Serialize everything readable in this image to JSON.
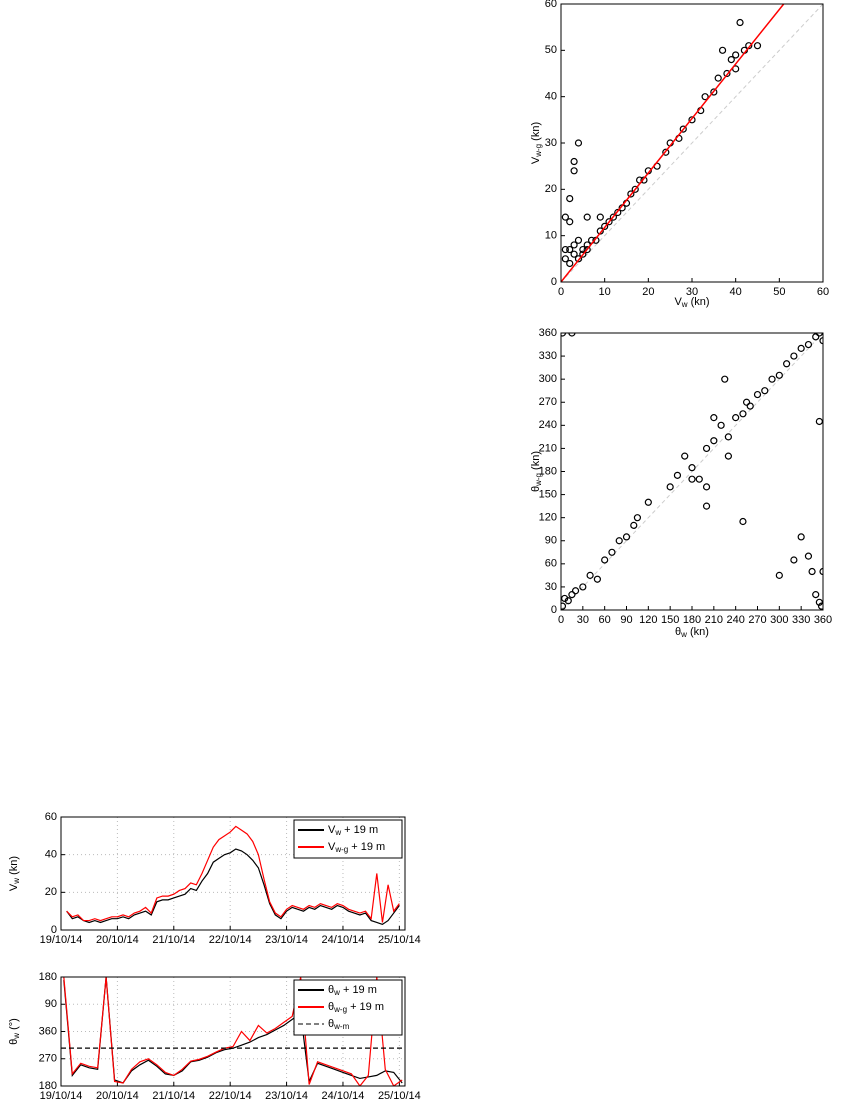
{
  "chart_data": [
    {
      "type": "scatter",
      "xlabel": {
        "main": "V",
        "sub": "w",
        "unit": " (kn)"
      },
      "ylabel": {
        "main": "V",
        "sub": "w-g",
        "unit": " (kn)"
      },
      "xlim": [
        0,
        60
      ],
      "ylim": [
        0,
        60
      ],
      "xticks": [
        0,
        10,
        20,
        30,
        40,
        50,
        60
      ],
      "yticks": [
        0,
        10,
        20,
        30,
        40,
        50,
        60
      ],
      "grid": false,
      "series": [
        {
          "color": "#000000",
          "marker": "circle",
          "x": [
            1,
            2,
            2,
            3,
            3,
            4,
            4,
            5,
            5,
            6,
            6,
            7,
            8,
            9,
            10,
            11,
            12,
            13,
            14,
            15,
            16,
            17,
            18,
            19,
            20,
            22,
            24,
            25,
            27,
            28,
            30,
            32,
            33,
            35,
            36,
            38,
            39,
            40,
            41,
            42,
            43,
            45,
            37,
            40,
            1,
            2,
            3,
            3,
            4,
            2,
            6,
            9,
            1
          ],
          "values": [
            5,
            4,
            7,
            6,
            8,
            5,
            9,
            7,
            6,
            8,
            7,
            9,
            9,
            11,
            12,
            13,
            14,
            15,
            16,
            17,
            19,
            20,
            22,
            22,
            24,
            25,
            28,
            30,
            31,
            33,
            35,
            37,
            40,
            41,
            44,
            45,
            48,
            49,
            56,
            50,
            51,
            51,
            50,
            46,
            14,
            13,
            24,
            26,
            30,
            18,
            14,
            14,
            7
          ]
        },
        {
          "color": "#ff0000",
          "marker": "line",
          "x": [
            0,
            51
          ],
          "values": [
            0,
            60
          ]
        }
      ]
    },
    {
      "type": "scatter",
      "xlabel": {
        "main": "θ",
        "sub": "w",
        "unit": " (kn)"
      },
      "ylabel": {
        "main": "θ",
        "sub": "w-g",
        "unit": " (kn)"
      },
      "xlim": [
        0,
        360
      ],
      "ylim": [
        0,
        360
      ],
      "xticks": [
        0,
        30,
        60,
        90,
        120,
        150,
        180,
        210,
        240,
        270,
        300,
        330,
        360
      ],
      "yticks": [
        0,
        30,
        60,
        90,
        120,
        150,
        180,
        210,
        240,
        270,
        300,
        330,
        360
      ],
      "grid": false,
      "series": [
        {
          "color": "#000000",
          "marker": "circle",
          "x": [
            2,
            5,
            10,
            15,
            20,
            30,
            40,
            50,
            60,
            70,
            80,
            90,
            100,
            105,
            120,
            150,
            160,
            170,
            180,
            190,
            200,
            210,
            220,
            230,
            240,
            250,
            255,
            260,
            270,
            280,
            290,
            300,
            310,
            320,
            330,
            340,
            350,
            355,
            360,
            2,
            15,
            300,
            320,
            330,
            340,
            345,
            355,
            358,
            350,
            360,
            355,
            250,
            200,
            225,
            180,
            200,
            230,
            210
          ],
          "values": [
            5,
            15,
            12,
            20,
            25,
            30,
            45,
            40,
            65,
            75,
            90,
            95,
            110,
            120,
            140,
            160,
            175,
            200,
            185,
            170,
            210,
            220,
            240,
            225,
            250,
            255,
            270,
            265,
            280,
            285,
            300,
            305,
            320,
            330,
            340,
            345,
            355,
            360,
            350,
            360,
            360,
            45,
            65,
            95,
            70,
            50,
            10,
            5,
            20,
            50,
            245,
            115,
            135,
            300,
            170,
            160,
            200,
            250
          ]
        }
      ]
    },
    {
      "type": "line",
      "ylabel": {
        "main": "V",
        "sub": "w",
        "unit": " (kn)"
      },
      "xlim": [
        0,
        6.1
      ],
      "ylim": [
        0,
        60
      ],
      "xticks": [
        {
          "value": 0,
          "label": "19/10/14"
        },
        {
          "value": 1,
          "label": "20/10/14"
        },
        {
          "value": 2,
          "label": "21/10/14"
        },
        {
          "value": 3,
          "label": "22/10/14"
        },
        {
          "value": 4,
          "label": "23/10/14"
        },
        {
          "value": 5,
          "label": "24/10/14"
        },
        {
          "value": 6,
          "label": "25/10/14"
        }
      ],
      "yticks": [
        0,
        20,
        40,
        60
      ],
      "grid": true,
      "legend": "upper right",
      "series": [
        {
          "name": {
            "main": "V",
            "sub": "w",
            "rest": " + 19 m"
          },
          "color": "#000000",
          "dash": false,
          "x": [
            0.1,
            0.2,
            0.3,
            0.4,
            0.5,
            0.6,
            0.7,
            0.8,
            0.9,
            1.0,
            1.1,
            1.2,
            1.3,
            1.4,
            1.5,
            1.6,
            1.7,
            1.8,
            1.9,
            2.0,
            2.1,
            2.2,
            2.3,
            2.4,
            2.5,
            2.6,
            2.7,
            2.8,
            2.9,
            3.0,
            3.1,
            3.2,
            3.3,
            3.4,
            3.5,
            3.6,
            3.7,
            3.8,
            3.9,
            4.0,
            4.1,
            4.2,
            4.3,
            4.4,
            4.5,
            4.6,
            4.7,
            4.8,
            4.9,
            5.0,
            5.1,
            5.2,
            5.3,
            5.4,
            5.5,
            5.6,
            5.7,
            5.8,
            5.9,
            6.0
          ],
          "values": [
            10,
            6,
            7,
            5,
            4,
            5,
            4,
            5,
            6,
            6,
            7,
            6,
            8,
            9,
            10,
            8,
            15,
            16,
            16,
            17,
            18,
            19,
            22,
            21,
            26,
            30,
            36,
            38,
            40,
            41,
            43,
            42,
            40,
            37,
            33,
            24,
            14,
            8,
            6,
            10,
            12,
            11,
            10,
            12,
            11,
            13,
            12,
            11,
            13,
            12,
            10,
            9,
            8,
            9,
            5,
            4,
            3,
            5,
            9,
            13
          ]
        },
        {
          "name": {
            "main": "V",
            "sub": "w-g",
            "rest": " + 19 m"
          },
          "color": "#ff0000",
          "dash": false,
          "x": [
            0.1,
            0.2,
            0.3,
            0.4,
            0.5,
            0.6,
            0.7,
            0.8,
            0.9,
            1.0,
            1.1,
            1.2,
            1.3,
            1.4,
            1.5,
            1.6,
            1.7,
            1.8,
            1.9,
            2.0,
            2.1,
            2.2,
            2.3,
            2.4,
            2.5,
            2.6,
            2.7,
            2.8,
            2.9,
            3.0,
            3.1,
            3.2,
            3.3,
            3.4,
            3.5,
            3.6,
            3.7,
            3.8,
            3.9,
            4.0,
            4.1,
            4.2,
            4.3,
            4.4,
            4.5,
            4.6,
            4.7,
            4.8,
            4.9,
            5.0,
            5.1,
            5.2,
            5.3,
            5.4,
            5.5,
            5.6,
            5.7,
            5.8,
            5.9,
            6.0
          ],
          "values": [
            10,
            7,
            8,
            5,
            5,
            6,
            5,
            6,
            7,
            7,
            8,
            7,
            9,
            10,
            12,
            9,
            17,
            18,
            18,
            19,
            21,
            22,
            25,
            24,
            30,
            37,
            44,
            48,
            50,
            52,
            55,
            53,
            51,
            47,
            40,
            27,
            15,
            9,
            7,
            11,
            13,
            12,
            11,
            13,
            12,
            14,
            13,
            12,
            14,
            13,
            11,
            10,
            9,
            10,
            6,
            30,
            4,
            24,
            10,
            14
          ]
        }
      ]
    },
    {
      "type": "line",
      "ylabel": {
        "main": "θ",
        "sub": "w",
        "unit": " (°)"
      },
      "xlim": [
        0,
        6.1
      ],
      "ylim": [
        180,
        540
      ],
      "xticks": [
        {
          "value": 0,
          "label": "19/10/14"
        },
        {
          "value": 1,
          "label": "20/10/14"
        },
        {
          "value": 2,
          "label": "21/10/14"
        },
        {
          "value": 3,
          "label": "22/10/14"
        },
        {
          "value": 4,
          "label": "23/10/14"
        },
        {
          "value": 5,
          "label": "24/10/14"
        },
        {
          "value": 6,
          "label": "25/10/14"
        }
      ],
      "yticks": [
        180,
        270,
        360,
        {
          "value": 450,
          "label": "90"
        },
        {
          "value": 540,
          "label": "180"
        }
      ],
      "grid": true,
      "legend": "upper right",
      "series": [
        {
          "name": {
            "main": "θ",
            "sub": "w",
            "rest": " + 19 m"
          },
          "color": "#000000",
          "dash": false,
          "x": [
            0.05,
            0.2,
            0.35,
            0.5,
            0.65,
            0.8,
            0.95,
            1.1,
            1.25,
            1.4,
            1.55,
            1.7,
            1.85,
            2.0,
            2.15,
            2.3,
            2.45,
            2.6,
            2.75,
            2.9,
            3.05,
            3.2,
            3.35,
            3.5,
            3.65,
            3.8,
            3.95,
            4.1,
            4.25,
            4.4,
            4.55,
            4.7,
            4.85,
            5.0,
            5.15,
            5.3,
            5.45,
            5.6,
            5.75,
            5.9,
            6.05
          ],
          "values": [
            530,
            215,
            250,
            240,
            235,
            540,
            200,
            190,
            230,
            250,
            265,
            245,
            220,
            215,
            230,
            260,
            265,
            275,
            290,
            300,
            305,
            315,
            325,
            340,
            350,
            365,
            380,
            400,
            420,
            195,
            255,
            245,
            235,
            225,
            215,
            205,
            210,
            215,
            230,
            225,
            190
          ]
        },
        {
          "name": {
            "main": "θ",
            "sub": "w-g",
            "rest": " + 19 m"
          },
          "color": "#ff0000",
          "dash": false,
          "x": [
            0.05,
            0.2,
            0.35,
            0.5,
            0.65,
            0.8,
            0.95,
            1.1,
            1.25,
            1.4,
            1.55,
            1.7,
            1.85,
            2.0,
            2.15,
            2.3,
            2.45,
            2.6,
            2.75,
            2.9,
            3.05,
            3.2,
            3.35,
            3.5,
            3.65,
            3.8,
            3.95,
            4.1,
            4.25,
            4.4,
            4.55,
            4.7,
            4.85,
            5.0,
            5.15,
            5.3,
            5.45,
            5.6,
            5.75,
            5.9,
            6.05
          ],
          "values": [
            540,
            220,
            255,
            245,
            240,
            540,
            195,
            190,
            235,
            260,
            270,
            250,
            225,
            215,
            235,
            262,
            268,
            278,
            292,
            305,
            310,
            360,
            330,
            380,
            355,
            370,
            390,
            410,
            540,
            185,
            260,
            250,
            240,
            230,
            220,
            180,
            215,
            540,
            235,
            180,
            200
          ]
        },
        {
          "name": {
            "main": "θ",
            "sub": "w-m",
            "rest": ""
          },
          "color": "#000000",
          "dash": true,
          "x": [
            0,
            6.1
          ],
          "values": [
            305,
            305
          ]
        }
      ]
    }
  ]
}
